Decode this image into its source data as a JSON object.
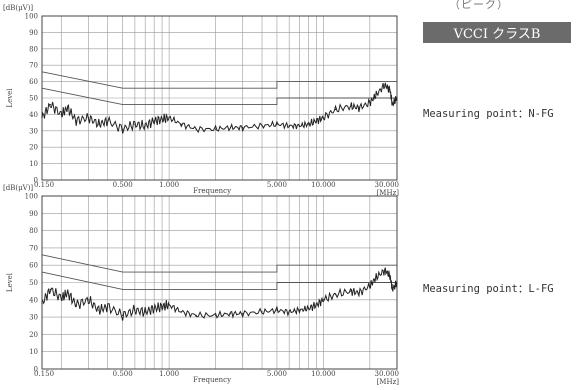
{
  "header": {
    "top_text": "（ピーク）",
    "badge": "VCCI クラスB"
  },
  "labels": {
    "point1": "Measuring point：N-FG",
    "point2": "Measuring point：L-FG"
  },
  "colors": {
    "trace": "#222222",
    "limit": "#555555",
    "grid": "#999999",
    "badge_bg": "#6b6b6b"
  },
  "chart_data": [
    {
      "type": "line",
      "unit_label": "[dB(μV)]",
      "xlabel": "Frequency",
      "xunit": "[MHz]",
      "ylabel": "Level",
      "x_scale": "log",
      "xlim": [
        0.15,
        30
      ],
      "ylim": [
        0,
        100
      ],
      "grid": true,
      "x_ticks": [
        "0.150",
        "0.500",
        "1.000",
        "5.000",
        "10.000",
        "30.000"
      ],
      "y_ticks": [
        "0",
        "10",
        "20",
        "30",
        "40",
        "50",
        "60",
        "70",
        "80",
        "90",
        "100"
      ],
      "limit_lines": [
        {
          "x": [
            0.15,
            0.5,
            5,
            5,
            30
          ],
          "y": [
            66,
            56,
            56,
            60,
            60
          ]
        },
        {
          "x": [
            0.15,
            0.5,
            5,
            5,
            30
          ],
          "y": [
            56,
            46,
            46,
            50,
            50
          ]
        }
      ],
      "series": [
        {
          "x": [
            0.15,
            0.17,
            0.2,
            0.22,
            0.25,
            0.3,
            0.35,
            0.4,
            0.5,
            0.6,
            0.7,
            0.8,
            0.9,
            1.0,
            1.2,
            1.5,
            2.0,
            2.5,
            3.0,
            4.0,
            5.0,
            6.0,
            7.0,
            8.0,
            9.0,
            10.0,
            12.0,
            15.0,
            17.0,
            20.0,
            22.0,
            25.0,
            27.0,
            28.0,
            30.0
          ],
          "y": [
            38,
            46,
            40,
            44,
            36,
            38,
            34,
            36,
            31,
            34,
            33,
            36,
            37,
            38,
            34,
            31,
            31,
            32,
            32,
            33,
            34,
            33,
            33,
            34,
            36,
            38,
            43,
            45,
            44,
            47,
            52,
            58,
            55,
            46,
            50
          ]
        }
      ]
    },
    {
      "type": "line",
      "unit_label": "[dB(μV)]",
      "xlabel": "Frequency",
      "xunit": "[MHz]",
      "ylabel": "Level",
      "x_scale": "log",
      "xlim": [
        0.15,
        30
      ],
      "ylim": [
        0,
        100
      ],
      "grid": true,
      "x_ticks": [
        "0.150",
        "0.500",
        "1.000",
        "5.000",
        "10.000",
        "30.000"
      ],
      "y_ticks": [
        "0",
        "10",
        "20",
        "30",
        "40",
        "50",
        "60",
        "70",
        "80",
        "90",
        "100"
      ],
      "limit_lines": [
        {
          "x": [
            0.15,
            0.5,
            5,
            5,
            30
          ],
          "y": [
            66,
            56,
            56,
            60,
            60
          ]
        },
        {
          "x": [
            0.15,
            0.5,
            5,
            5,
            30
          ],
          "y": [
            56,
            46,
            46,
            50,
            50
          ]
        }
      ],
      "series": [
        {
          "x": [
            0.15,
            0.17,
            0.2,
            0.22,
            0.25,
            0.3,
            0.35,
            0.4,
            0.5,
            0.6,
            0.7,
            0.8,
            0.9,
            1.0,
            1.2,
            1.5,
            2.0,
            2.5,
            3.0,
            4.0,
            5.0,
            6.0,
            7.0,
            8.0,
            9.0,
            10.0,
            12.0,
            15.0,
            17.0,
            20.0,
            22.0,
            25.0,
            27.0,
            28.0,
            30.0
          ],
          "y": [
            38,
            46,
            41,
            44,
            37,
            40,
            34,
            36,
            31,
            34,
            33,
            35,
            36,
            37,
            33,
            31,
            31,
            32,
            32,
            33,
            34,
            33,
            34,
            35,
            37,
            40,
            43,
            45,
            44,
            48,
            53,
            57,
            54,
            46,
            50
          ]
        }
      ]
    }
  ]
}
